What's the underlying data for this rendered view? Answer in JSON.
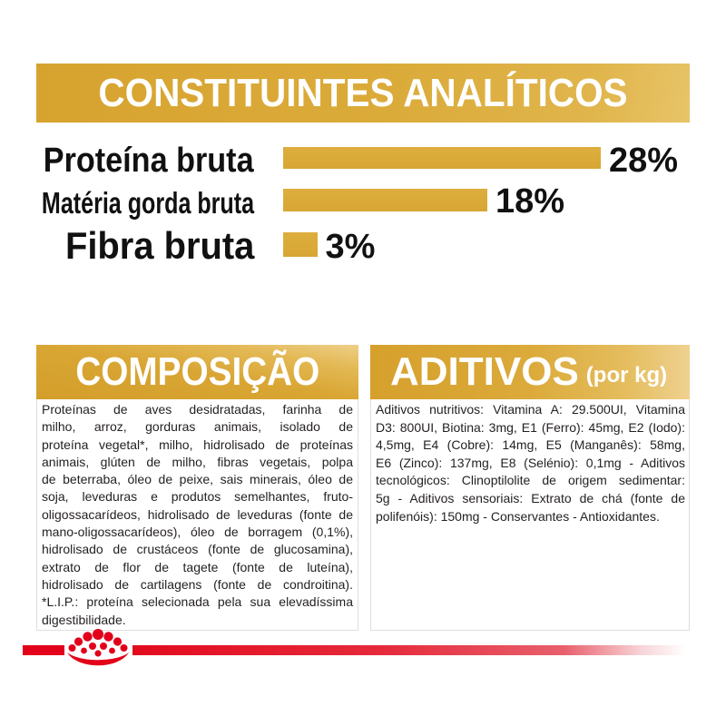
{
  "analytical": {
    "title": "CONSTITUINTES ANALÍTICOS",
    "rows": [
      {
        "label": "Proteína bruta",
        "value": 28,
        "value_label": "28%"
      },
      {
        "label": "Matéria gorda bruta",
        "value": 18,
        "value_label": "18%"
      },
      {
        "label": "Fibra bruta",
        "value": 3,
        "value_label": "3%"
      }
    ]
  },
  "composition": {
    "title": "COMPOSIÇÃO",
    "lines": [
      "Proteínas de aves desidratadas, farinha de",
      "milho, arroz, gorduras animais, isolado de",
      "proteína vegetal*, milho, hidrolisado de proteínas",
      "animais, glúten de milho, fibras vegetais, polpa",
      "de beterraba, óleo de peixe, sais minerais, óleo de",
      "soja, leveduras e produtos semelhantes, fruto-",
      "oligossacarídeos, hidrolisado de leveduras (fonte de",
      "mano-oligossacarídeos), óleo de borragem (0,1%),",
      "hidrolisado de crustáceos (fonte de glucosamina),",
      "extrato de flor de tagete (fonte de luteína),",
      "hidrolisado de cartilagens (fonte de condroitina).",
      "*L.I.P.: proteína selecionada pela sua elevadíssima",
      "digestibilidade."
    ]
  },
  "additives": {
    "title": "ADITIVOS",
    "unit": "(por kg)",
    "lines": [
      "Aditivos nutritivos: Vitamina A: 29.500UI, Vitamina",
      "D3: 800UI, Biotina: 3mg, E1 (Ferro): 45mg, E2 (Iodo):",
      "4,5mg, E4 (Cobre): 14mg, E5 (Manganês): 58mg,",
      "E6 (Zinco): 137mg, E8 (Selénio): 0,1mg - Aditivos",
      "tecnológicos: Clinoptilolite de origem sedimentar:",
      "5g - Aditivos sensoriais: Extrato de chá (fonte de",
      "polifenóis): 150mg - Conservantes - Antioxidantes."
    ]
  },
  "colors": {
    "gold": "#dbab3a",
    "brand_red": "#e2001a",
    "text": "#231f20"
  },
  "logo": {
    "icon": "royal-canin-crown-logo"
  }
}
